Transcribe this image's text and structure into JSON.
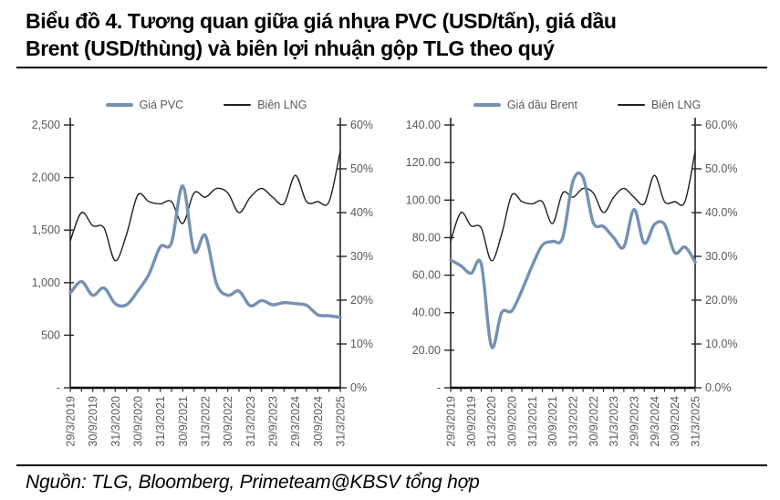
{
  "title": {
    "line1": "Biểu đồ 4. Tương quan giữa giá nhựa PVC (USD/tấn), giá dầu",
    "line2": "Brent (USD/thùng) và biên lợi nhuận gộp TLG theo quý"
  },
  "source": "Nguồn: TLG, Bloomberg, Primeteam@KBSV tổng hợp",
  "chart_data": [
    {
      "type": "line",
      "legend_position": "top",
      "grid": false,
      "n_points": 25,
      "label_every": 2,
      "x_labels": [
        "29/3/2019",
        "30/9/2019",
        "31/3/2020",
        "30/9/2020",
        "31/3/2021",
        "30/9/2021",
        "31/3/2022",
        "30/9/2022",
        "31/3/2023",
        "29/9/2023",
        "29/3/2024",
        "30/9/2024",
        "31/3/2025"
      ],
      "left_axis": {
        "min": 0,
        "max": 2500,
        "tick_values": [
          2500,
          2000,
          1500,
          1000,
          500,
          0
        ],
        "tick_labels": [
          "2,500",
          "2,000",
          "1,500",
          "1,000",
          "500",
          "-"
        ]
      },
      "right_axis": {
        "min": 0,
        "max": 60,
        "tick_values": [
          60,
          50,
          40,
          30,
          20,
          10,
          0
        ],
        "tick_labels": [
          "60%",
          "50%",
          "40%",
          "30%",
          "20%",
          "10%",
          "0%"
        ]
      },
      "series": [
        {
          "name": "Giá PVC",
          "axis": "left",
          "color": "#7491B2",
          "stroke_width": 3.4,
          "values": [
            900,
            1010,
            880,
            950,
            800,
            790,
            920,
            1080,
            1340,
            1380,
            1920,
            1300,
            1450,
            990,
            880,
            920,
            780,
            830,
            790,
            810,
            800,
            785,
            695,
            685,
            670
          ]
        },
        {
          "name": "Biên LNG",
          "axis": "right",
          "color": "#1f1f1f",
          "stroke_width": 1.4,
          "values": [
            33.5,
            40,
            37,
            36.5,
            29,
            35,
            44,
            42.5,
            42,
            42.5,
            37.5,
            44.5,
            43.5,
            45.5,
            44.5,
            40,
            43.5,
            45.5,
            43.5,
            42,
            48.5,
            42.5,
            42.5,
            42.5,
            54
          ]
        }
      ]
    },
    {
      "type": "line",
      "legend_position": "top",
      "grid": false,
      "n_points": 25,
      "label_every": 2,
      "x_labels": [
        "29/3/2019",
        "30/9/2019",
        "31/3/2020",
        "30/9/2020",
        "31/3/2021",
        "30/9/2021",
        "31/3/2022",
        "30/9/2022",
        "31/3/2023",
        "29/9/2023",
        "29/3/2024",
        "30/9/2024",
        "31/3/2025"
      ],
      "left_axis": {
        "min": 0,
        "max": 140,
        "tick_values": [
          140,
          120,
          100,
          80,
          60,
          40,
          20,
          0
        ],
        "tick_labels": [
          "140.00",
          "120.00",
          "100.00",
          "80.00",
          "60.00",
          "40.00",
          "20.00",
          "-"
        ]
      },
      "right_axis": {
        "min": 0,
        "max": 60,
        "tick_values": [
          60,
          50,
          40,
          30,
          20,
          10,
          0
        ],
        "tick_labels": [
          "60.0%",
          "50.0%",
          "40.0%",
          "30.0%",
          "20.0%",
          "10.0%",
          "0.0%"
        ]
      },
      "series": [
        {
          "name": "Giá dầu Brent",
          "axis": "left",
          "color": "#7491B2",
          "stroke_width": 3.4,
          "values": [
            68,
            65,
            61,
            66,
            22,
            40,
            41,
            52,
            65,
            76,
            78,
            80,
            110,
            112,
            88,
            86,
            80,
            75,
            95,
            77,
            87,
            87,
            72,
            75,
            67
          ]
        },
        {
          "name": "Biên LNG",
          "axis": "right",
          "color": "#1f1f1f",
          "stroke_width": 1.4,
          "values": [
            33.5,
            40,
            37,
            36.5,
            29,
            35,
            44,
            42.5,
            42,
            42.5,
            37.5,
            44.5,
            43.5,
            45.5,
            44.5,
            40,
            43.5,
            45.5,
            43.5,
            42,
            48.5,
            42.5,
            42.5,
            42.5,
            54
          ]
        }
      ]
    }
  ]
}
